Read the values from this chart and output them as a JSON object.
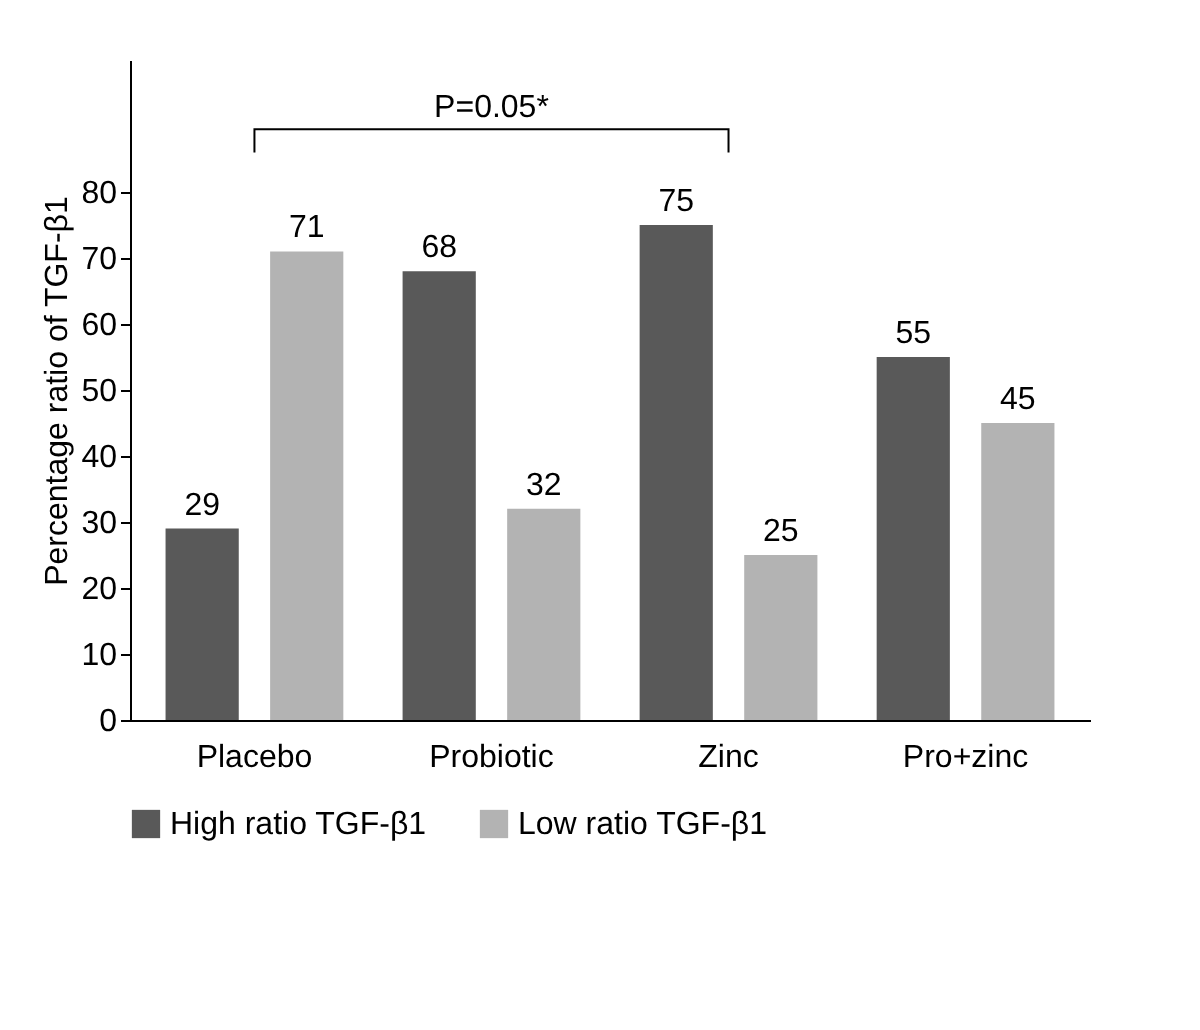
{
  "chart_data": {
    "type": "bar",
    "ylabel": "Percentage ratio of TGF-β1",
    "categories": [
      "Placebo",
      "Probiotic",
      "Zinc",
      "Pro+zinc"
    ],
    "series": [
      {
        "name": "High ratio TGF-β1",
        "color": "#595959",
        "values": [
          29,
          68,
          75,
          55
        ]
      },
      {
        "name": "Low ratio TGF-β1",
        "color": "#b3b3b3",
        "values": [
          71,
          32,
          25,
          45
        ]
      }
    ],
    "ylim": [
      0,
      100
    ],
    "yticks": [
      0,
      10,
      20,
      30,
      40,
      50,
      60,
      70,
      80
    ],
    "data_labels": true,
    "grid": false,
    "legend": "bottom",
    "annotations": [
      "P=0.05*"
    ]
  }
}
